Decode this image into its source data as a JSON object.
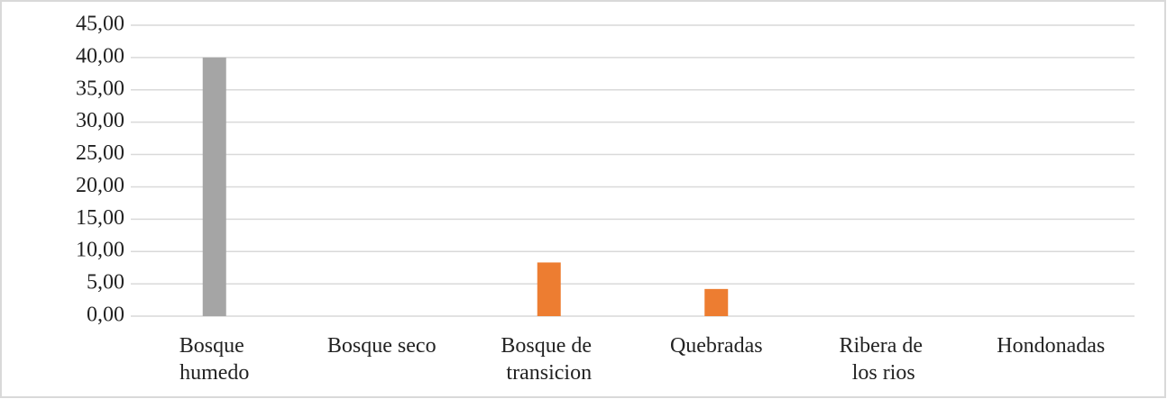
{
  "chart_data": {
    "type": "bar",
    "categories": [
      "Bosque humedo",
      "Bosque seco",
      "Bosque de transicion",
      "Quebradas",
      "Ribera de los rios",
      "Hondonadas"
    ],
    "values": [
      40,
      0,
      8.3,
      4.2,
      0,
      0
    ],
    "colors": [
      "#a5a5a5",
      "#ed7d31",
      "#ed7d31",
      "#ed7d31",
      "#ed7d31",
      "#ed7d31"
    ],
    "ylim": [
      0,
      45
    ],
    "yticks": [
      {
        "value": 0,
        "label": "0,00"
      },
      {
        "value": 5,
        "label": "5,00"
      },
      {
        "value": 10,
        "label": "10,00"
      },
      {
        "value": 15,
        "label": "15,00"
      },
      {
        "value": 20,
        "label": "20,00"
      },
      {
        "value": 25,
        "label": "25,00"
      },
      {
        "value": 30,
        "label": "30,00"
      },
      {
        "value": 35,
        "label": "35,00"
      },
      {
        "value": 40,
        "label": "40,00"
      },
      {
        "value": 45,
        "label": "45,00"
      }
    ],
    "grid": true
  }
}
